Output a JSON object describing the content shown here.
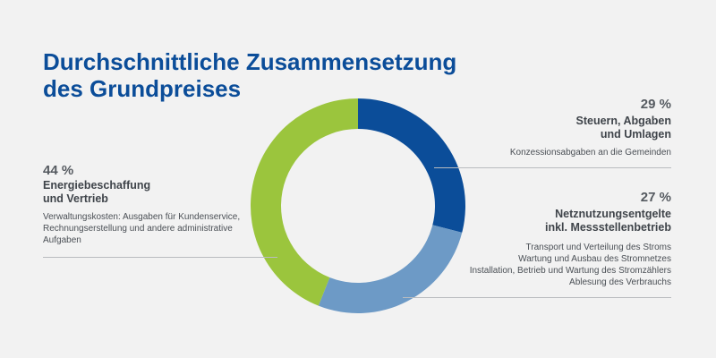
{
  "chart_data": {
    "type": "pie",
    "title": "Durchschnittliche Zusammensetzung des Grundpreises",
    "title_lines": [
      "Durchschnittliche Zusammensetzung",
      "des Grundpreises"
    ],
    "start_angle": 0,
    "colors": {
      "title": "#0b4d99",
      "background": "#f2f2f2"
    },
    "slices": [
      {
        "label": "Steuern, Abgaben und Umlagen",
        "value": 29,
        "pct_label": "29 %",
        "name_lines": [
          "Steuern, Abgaben",
          "und Umlagen"
        ],
        "desc_lines": [
          "Konzessionsabgaben an die Gemeinden"
        ],
        "color": "#0b4d99"
      },
      {
        "label": "Netznutzungsentgelte inkl. Messstellenbetrieb",
        "value": 27,
        "pct_label": "27 %",
        "name_lines": [
          "Netznutzungsentgelte",
          "inkl. Messstellenbetrieb"
        ],
        "desc_lines": [
          "Transport und Verteilung des Stroms",
          "Wartung und Ausbau des Stromnetzes",
          "Installation, Betrieb und Wartung des Stromzählers",
          "Ablesung des Verbrauchs"
        ],
        "color": "#6d9ac6"
      },
      {
        "label": "Energiebeschaffung und Vertrieb",
        "value": 44,
        "pct_label": "44 %",
        "name_lines": [
          "Energiebeschaffung",
          "und Vertrieb"
        ],
        "desc_lines": [
          "Verwaltungskosten: Ausgaben für Kundenservice,",
          "Rechnungserstellung und andere administrative",
          "Aufgaben"
        ],
        "color": "#9bc53d"
      }
    ]
  }
}
